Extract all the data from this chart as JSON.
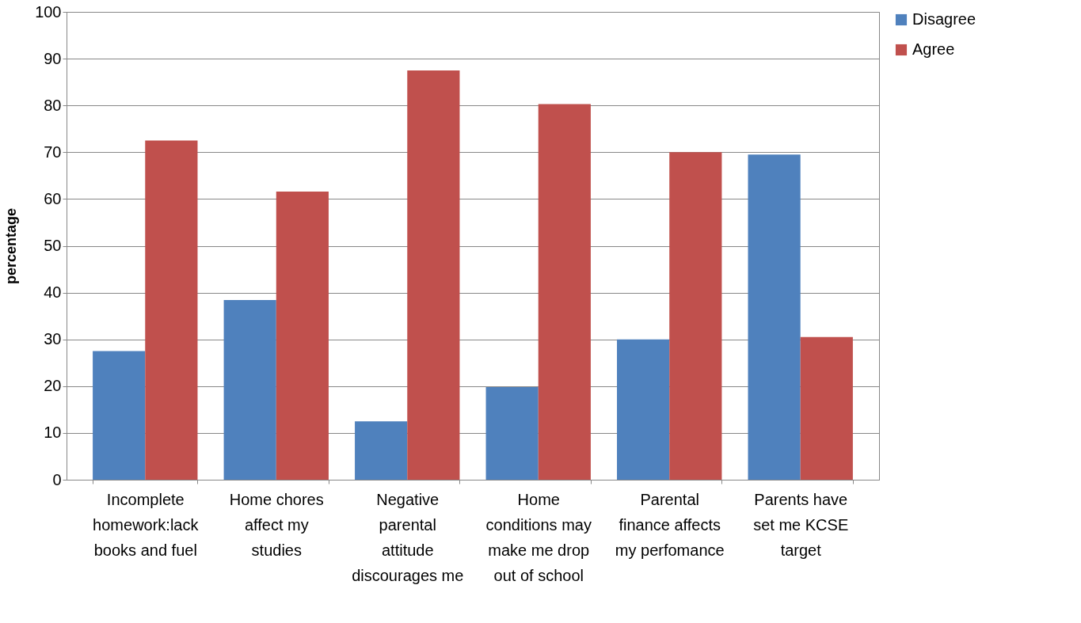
{
  "chart_data": {
    "type": "bar",
    "ylabel": "percentage",
    "categories": [
      "Incomplete\nhomework:lack\nbooks and fuel",
      "Home chores\naffect my\nstudies",
      "Negative\nparental\nattitude\ndiscourages me",
      "Home\nconditions may\nmake me drop\nout of school",
      "Parental\nfinance affects\nmy perfomance",
      "Parents have\nset me KCSE\ntarget"
    ],
    "series": [
      {
        "name": "Disagree",
        "color": "#4f81bd",
        "values": [
          27.5,
          38.4,
          12.5,
          19.8,
          30.0,
          69.5
        ]
      },
      {
        "name": "Agree",
        "color": "#c0504d",
        "values": [
          72.5,
          61.6,
          87.5,
          80.3,
          70.0,
          30.5
        ]
      }
    ],
    "ylim": [
      0,
      100
    ],
    "yticks": [
      0,
      10,
      20,
      30,
      40,
      50,
      60,
      70,
      80,
      90,
      100
    ],
    "grid": "y",
    "legend": "right"
  }
}
